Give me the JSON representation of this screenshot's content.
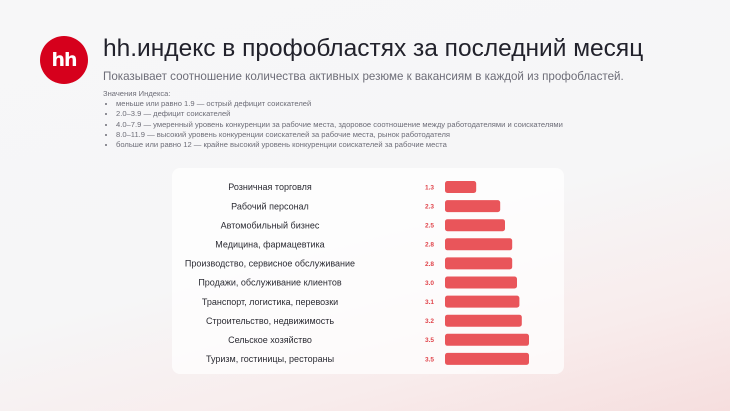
{
  "logo_text": "hh",
  "title": "hh.индекс в профобластях за последний месяц",
  "subtitle": "Показывает соотношение количества активных резюме к вакансиям в каждой из профобластей.",
  "legend": {
    "heading": "Значения Индекса:",
    "items": [
      "меньше или равно 1.9 — острый дефицит соискателей",
      "2.0–3.9 — дефицит соискателей",
      "4.0–7.9 — умеренный уровень конкуренции за рабочие места, здоровое соотношение между работодателями и соискателями",
      "8.0–11.9 — высокий уровень конкуренции соискателей за рабочие места, рынок работодателя",
      "больше или равно 12 — крайне высокий уровень конкуренции соискателей за рабочие места"
    ]
  },
  "colors": {
    "bar": "#e9555a",
    "value_label": "#e0434a",
    "logo": "#d6001c"
  },
  "chart_data": {
    "type": "bar",
    "orientation": "horizontal",
    "categories": [
      "Розничная торговля",
      "Рабочий персонал",
      "Автомобильный бизнес",
      "Медицина, фармацевтика",
      "Производство, сервисное обслуживание",
      "Продажи, обслуживание клиентов",
      "Транспорт, логистика, перевозки",
      "Строительство, недвижимость",
      "Сельское хозяйство",
      "Туризм, гостиницы, рестораны"
    ],
    "values": [
      1.3,
      2.3,
      2.5,
      2.8,
      2.8,
      3.0,
      3.1,
      3.2,
      3.5,
      3.5
    ],
    "value_labels": [
      "1.3",
      "2.3",
      "2.5",
      "2.8",
      "2.8",
      "3.0",
      "3.1",
      "3.2",
      "3.5",
      "3.5"
    ],
    "xlim": [
      0,
      3.5
    ],
    "grid": false
  }
}
